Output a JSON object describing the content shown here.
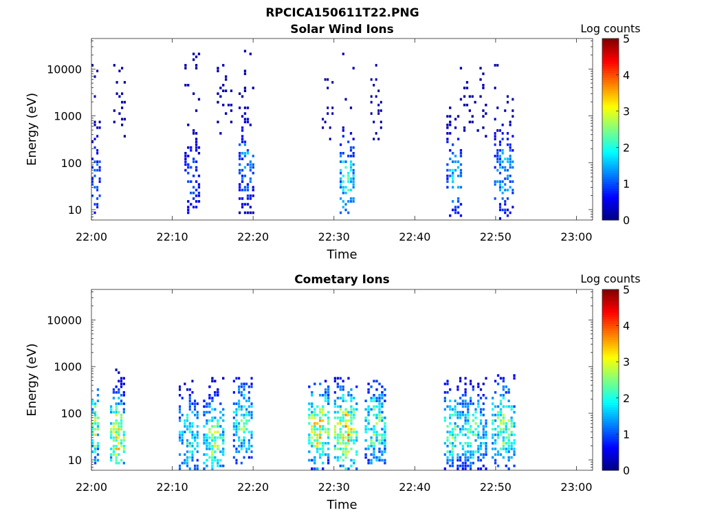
{
  "figure_title": "RPCICA150611T22.PNG",
  "chart_data": [
    {
      "type": "heatmap",
      "title": "Solar Wind Ions",
      "xlabel": "Time",
      "ylabel": "Energy (eV)",
      "x_ticks": [
        "22:00",
        "22:10",
        "22:20",
        "22:30",
        "22:40",
        "22:50",
        "23:00"
      ],
      "x_range": [
        "22:00",
        "23:02"
      ],
      "y_ticks": [
        "10",
        "100",
        "1000",
        "10000"
      ],
      "y_range": [
        6,
        45000
      ],
      "y_scale": "log",
      "colorbar": {
        "label": "Log counts",
        "ticks": [
          "0",
          "1",
          "2",
          "3",
          "4",
          "5"
        ],
        "range": [
          0,
          5
        ],
        "colormap": "jet"
      },
      "bursts": [
        {
          "start_min": 0.0,
          "end_min": 1.2,
          "emin": 8,
          "emax": 14000,
          "peak_logc": 1.4,
          "peak_e": 50,
          "density": 0.45
        },
        {
          "start_min": 2.7,
          "end_min": 4.3,
          "emin": 250,
          "emax": 14000,
          "peak_logc": 0.3,
          "peak_e": 2000,
          "density": 0.12
        },
        {
          "start_min": 11.5,
          "end_min": 13.5,
          "emin": 8,
          "emax": 30000,
          "peak_logc": 1.2,
          "peak_e": 40,
          "density": 0.4
        },
        {
          "start_min": 15.5,
          "end_min": 17.5,
          "emin": 400,
          "emax": 14000,
          "peak_logc": 0.3,
          "peak_e": 2000,
          "density": 0.15
        },
        {
          "start_min": 18.2,
          "end_min": 20.2,
          "emin": 8,
          "emax": 30000,
          "peak_logc": 1.6,
          "peak_e": 100,
          "density": 0.45
        },
        {
          "start_min": 28.5,
          "end_min": 30.0,
          "emin": 300,
          "emax": 14000,
          "peak_logc": 0.3,
          "peak_e": 2000,
          "density": 0.12
        },
        {
          "start_min": 30.7,
          "end_min": 32.6,
          "emin": 8,
          "emax": 22000,
          "peak_logc": 2.4,
          "peak_e": 40,
          "density": 0.45
        },
        {
          "start_min": 34.5,
          "end_min": 36.0,
          "emin": 300,
          "emax": 14000,
          "peak_logc": 0.3,
          "peak_e": 2000,
          "density": 0.15
        },
        {
          "start_min": 43.9,
          "end_min": 45.9,
          "emin": 6,
          "emax": 20000,
          "peak_logc": 1.8,
          "peak_e": 50,
          "density": 0.45
        },
        {
          "start_min": 46.0,
          "end_min": 49.0,
          "emin": 300,
          "emax": 11000,
          "peak_logc": 0.3,
          "peak_e": 2000,
          "density": 0.15
        },
        {
          "start_min": 49.8,
          "end_min": 52.3,
          "emin": 6,
          "emax": 14000,
          "peak_logc": 1.8,
          "peak_e": 60,
          "density": 0.45
        }
      ]
    },
    {
      "type": "heatmap",
      "title": "Cometary Ions",
      "xlabel": "Time",
      "ylabel": "Energy (eV)",
      "x_ticks": [
        "22:00",
        "22:10",
        "22:20",
        "22:30",
        "22:40",
        "22:50",
        "23:00"
      ],
      "x_range": [
        "22:00",
        "23:02"
      ],
      "y_ticks": [
        "10",
        "100",
        "1000",
        "10000"
      ],
      "y_range": [
        6,
        45000
      ],
      "y_scale": "log",
      "colorbar": {
        "label": "Log counts",
        "ticks": [
          "0",
          "1",
          "2",
          "3",
          "4",
          "5"
        ],
        "range": [
          0,
          5
        ],
        "colormap": "jet"
      },
      "bursts": [
        {
          "start_min": 0.0,
          "end_min": 1.0,
          "emin": 8,
          "emax": 320,
          "peak_logc": 3.0,
          "peak_e": 50,
          "density": 0.6
        },
        {
          "start_min": 2.3,
          "end_min": 4.2,
          "emin": 8,
          "emax": 1000,
          "peak_logc": 3.6,
          "peak_e": 30,
          "density": 0.6
        },
        {
          "start_min": 10.8,
          "end_min": 13.3,
          "emin": 6,
          "emax": 500,
          "peak_logc": 2.4,
          "peak_e": 30,
          "density": 0.55
        },
        {
          "start_min": 13.8,
          "end_min": 16.5,
          "emin": 6,
          "emax": 600,
          "peak_logc": 3.0,
          "peak_e": 25,
          "density": 0.6
        },
        {
          "start_min": 17.5,
          "end_min": 20.0,
          "emin": 8,
          "emax": 600,
          "peak_logc": 2.6,
          "peak_e": 60,
          "density": 0.6
        },
        {
          "start_min": 26.8,
          "end_min": 29.5,
          "emin": 6,
          "emax": 500,
          "peak_logc": 3.6,
          "peak_e": 50,
          "density": 0.65
        },
        {
          "start_min": 30.0,
          "end_min": 33.0,
          "emin": 6,
          "emax": 600,
          "peak_logc": 3.8,
          "peak_e": 40,
          "density": 0.65
        },
        {
          "start_min": 33.8,
          "end_min": 36.5,
          "emin": 8,
          "emax": 500,
          "peak_logc": 2.8,
          "peak_e": 50,
          "density": 0.65
        },
        {
          "start_min": 43.6,
          "end_min": 45.5,
          "emin": 6,
          "emax": 500,
          "peak_logc": 2.8,
          "peak_e": 40,
          "density": 0.55
        },
        {
          "start_min": 45.5,
          "end_min": 49.0,
          "emin": 6,
          "emax": 600,
          "peak_logc": 2.6,
          "peak_e": 40,
          "density": 0.55
        },
        {
          "start_min": 49.5,
          "end_min": 52.5,
          "emin": 6,
          "emax": 700,
          "peak_logc": 3.0,
          "peak_e": 50,
          "density": 0.6
        }
      ]
    }
  ]
}
